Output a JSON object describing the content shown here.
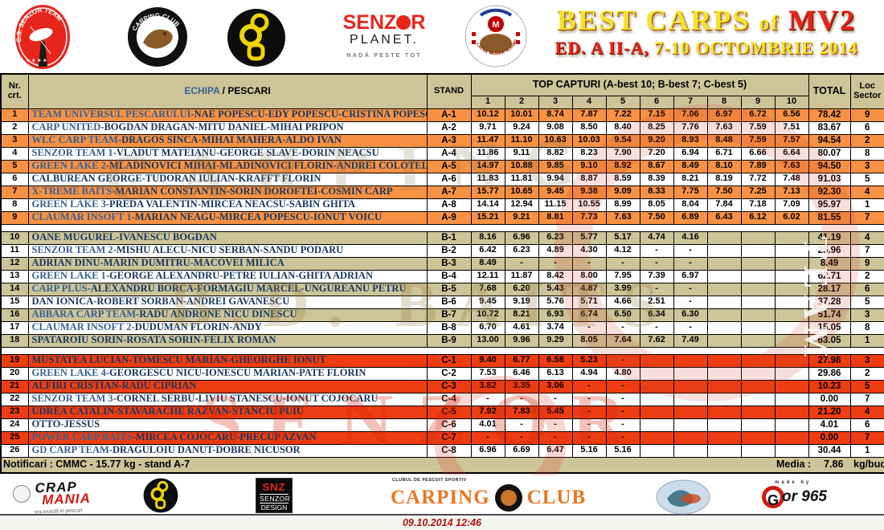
{
  "banner": {
    "title_main": "BEST CARPS",
    "title_of": "of",
    "title_mv2": "MV2",
    "subtitle_ed": "ED. A II-A,",
    "subtitle_date": "7-10 OCTOMBRIE 2014"
  },
  "logos": {
    "cs_senzor": "C.S. SENZOR TEAM",
    "carping_club": "CARPING CLUB",
    "senzor_planet_senz": "SENZ",
    "senzor_planet_r": "R",
    "senzor_planet_planet": "PLANET.",
    "senzor_planet_tag": "NADĂ PESTE TOT",
    "moara_vlasiei": "LACUL MOARA VLASIEI 2",
    "moara_m": "M"
  },
  "watermarks": {
    "carping": "CARPING",
    "baits": "B.D. BAITS",
    "senzor": "SENZOR",
    "team": "TEAM"
  },
  "colors": {
    "group_a_row": "#F79245",
    "group_b_row": "#CDC49A",
    "group_c_row": "#EE3D12",
    "header_beige": "#CDC49A",
    "team_blue": "#376092",
    "player_navy": "#17365D",
    "accent_red": "#E8251C"
  },
  "table": {
    "headers": {
      "nr": "Nr. crt.",
      "echipa": "ECHIPA",
      "pescari": " / PESCARI",
      "stand": "STAND",
      "top": "TOP CAPTURI (A-best 10; B-best 7; C-best 5)",
      "total": "TOTAL",
      "loc": "Loc Sector",
      "cols": [
        "1",
        "2",
        "3",
        "4",
        "5",
        "6",
        "7",
        "8",
        "9",
        "10"
      ]
    },
    "groups": [
      {
        "id": "A",
        "rows": [
          {
            "nr": 1,
            "team": "TEAM UNIVERSUL PESCARULUI",
            "players": "-NAE POPESCU-EDY POPESCU-CRISTINA POPESCU",
            "stand": "A-1",
            "v": [
              "10.12",
              "10.01",
              "8.74",
              "7.87",
              "7.22",
              "7.15",
              "7.06",
              "6.97",
              "6.72",
              "6.56"
            ],
            "total": "78.42",
            "loc": "9"
          },
          {
            "nr": 2,
            "team": "CARP UNITED",
            "players": "-BOGDAN DRAGAN-MITU DANIEL-MIHAI PRIPON",
            "stand": "A-2",
            "v": [
              "9.71",
              "9.24",
              "9.08",
              "8.50",
              "8.40",
              "8.25",
              "7.76",
              "7.63",
              "7.59",
              "7.51"
            ],
            "total": "83.67",
            "loc": "6"
          },
          {
            "nr": 3,
            "team": "WLC CARP TEAM",
            "players": "-DRAGOS SINCA-MIHAI MAHERA-ALDO IVAN",
            "stand": "A-3",
            "v": [
              "11.47",
              "11.10",
              "10.63",
              "10.03",
              "9.54",
              "9.20",
              "8.93",
              "8.48",
              "7.59",
              "7.57"
            ],
            "total": "94.54",
            "loc": "2"
          },
          {
            "nr": 4,
            "team": "SENZOR TEAM 1",
            "players": "-VLADUT MATEIANU-GEORGE SLAVE-DORIN NEACSU",
            "stand": "A-4",
            "v": [
              "11.86",
              "9.11",
              "8.82",
              "8.23",
              "7.90",
              "7.20",
              "6.94",
              "6.71",
              "6.66",
              "6.64"
            ],
            "total": "80.07",
            "loc": "8"
          },
          {
            "nr": 5,
            "team": "GREEN LAKE 2",
            "players": "-MLADINOVICI MIHAI-MLADINOVICI FLORIN-ANDREI COLOTELO",
            "stand": "A-5",
            "v": [
              "14.97",
              "10.88",
              "9.85",
              "9.10",
              "8.92",
              "8.67",
              "8.49",
              "8.10",
              "7.89",
              "7.63"
            ],
            "total": "94.50",
            "loc": "3"
          },
          {
            "nr": 6,
            "team": "",
            "players": "CALBUREAN GEORGE-TUDORAN IULIAN-KRAFFT FLORIN",
            "stand": "A-6",
            "v": [
              "11.83",
              "11.81",
              "9.94",
              "8.87",
              "8.59",
              "8.39",
              "8.21",
              "8.19",
              "7.72",
              "7.48"
            ],
            "total": "91.03",
            "loc": "5"
          },
          {
            "nr": 7,
            "team": "X-TREME BAITS",
            "players": "-MARIAN CONSTANTIN-SORIN DOROFTEI-COSMIN CARP",
            "stand": "A-7",
            "v": [
              "15.77",
              "10.65",
              "9.45",
              "9.38",
              "9.09",
              "8.33",
              "7.75",
              "7.50",
              "7.25",
              "7.13"
            ],
            "total": "92.30",
            "loc": "4"
          },
          {
            "nr": 8,
            "team": "GREEN LAKE 3",
            "players": "-PREDA VALENTIN-MIRCEA NEACSU-SABIN GHITA",
            "stand": "A-8",
            "v": [
              "14.14",
              "12.94",
              "11.15",
              "10.55",
              "8.99",
              "8.05",
              "8.04",
              "7.84",
              "7.18",
              "7.09"
            ],
            "total": "95.97",
            "loc": "1"
          },
          {
            "nr": 9,
            "team": "CLAUMAR INSOFT 1",
            "players": "-MARIAN NEAGU-MIRCEA POPESCU-IONUT VOICU",
            "stand": "A-9",
            "v": [
              "15.21",
              "9.21",
              "8.81",
              "7.73",
              "7.63",
              "7.50",
              "6.89",
              "6.43",
              "6.12",
              "6.02"
            ],
            "total": "81.55",
            "loc": "7"
          }
        ]
      },
      {
        "id": "B",
        "rows": [
          {
            "nr": 10,
            "team": "",
            "players": "OANE MUGUREL-IVANESCU BOGDAN",
            "stand": "B-1",
            "v": [
              "8.16",
              "6.96",
              "6.23",
              "5.77",
              "5.17",
              "4.74",
              "4.16",
              "",
              "",
              ""
            ],
            "total": "41.19",
            "loc": "4"
          },
          {
            "nr": 11,
            "team": "SENZOR TEAM 2",
            "players": "-MISHU ALECU-NICU SERBAN-SANDU PODARU",
            "stand": "B-2",
            "v": [
              "6.42",
              "6.23",
              "4.89",
              "4.30",
              "4.12",
              "-",
              "-",
              "",
              "",
              ""
            ],
            "total": "25.96",
            "loc": "7"
          },
          {
            "nr": 12,
            "team": "",
            "players": "ADRIAN DINU-MARIN DUMITRU-MACOVEI MILICA",
            "stand": "B-3",
            "v": [
              "8.49",
              "-",
              "-",
              "-",
              "-",
              "-",
              "-",
              "",
              "",
              ""
            ],
            "total": "8.49",
            "loc": "9"
          },
          {
            "nr": 13,
            "team": "GREEN LAKE 1",
            "players": "-GEORGE ALEXANDRU-PETRE IULIAN-GHITA ADRIAN",
            "stand": "B-4",
            "v": [
              "12.11",
              "11.87",
              "8.42",
              "8.00",
              "7.95",
              "7.39",
              "6.97",
              "",
              "",
              ""
            ],
            "total": "62.71",
            "loc": "2"
          },
          {
            "nr": 14,
            "team": "CARP PLUS",
            "players": "-ALEXANDRU BORCA-FORMAGIU MARCEL-UNGUREANU PETRU",
            "stand": "B-5",
            "v": [
              "7.68",
              "6.20",
              "5.43",
              "4.87",
              "3.99",
              "-",
              "-",
              "",
              "",
              ""
            ],
            "total": "28.17",
            "loc": "6"
          },
          {
            "nr": 15,
            "team": "",
            "players": "DAN IONICA-ROBERT SORBAN-ANDREI GAVANESCU",
            "stand": "B-6",
            "v": [
              "9.45",
              "9.19",
              "5.76",
              "5.71",
              "4.66",
              "2.51",
              "-",
              "",
              "",
              ""
            ],
            "total": "37.28",
            "loc": "5"
          },
          {
            "nr": 16,
            "team": "ABBARA CARP TEAM",
            "players": "-RADU ANDRONE NICU DINESCU",
            "stand": "B-7",
            "v": [
              "10.72",
              "8.21",
              "6.93",
              "6.74",
              "6.50",
              "6.34",
              "6.30",
              "",
              "",
              ""
            ],
            "total": "51.74",
            "loc": "3"
          },
          {
            "nr": 17,
            "team": "CLAUMAR INSOFT 2",
            "players": "-DUDUMAN FLORIN-ANDY",
            "stand": "B-8",
            "v": [
              "6.70",
              "4.61",
              "3.74",
              "-",
              "-",
              "-",
              "-",
              "",
              "",
              ""
            ],
            "total": "15.05",
            "loc": "8"
          },
          {
            "nr": 18,
            "team": "",
            "players": "SPATAROIU SORIN-ROSATA SORIN-FELIX ROMAN",
            "stand": "B-9",
            "v": [
              "13.00",
              "9.96",
              "9.29",
              "8.05",
              "7.64",
              "7.62",
              "7.49",
              "",
              "",
              ""
            ],
            "total": "63.05",
            "loc": "1"
          }
        ]
      },
      {
        "id": "C",
        "rows": [
          {
            "nr": 19,
            "team": "",
            "players": "MUSTATEA LUCIAN-TOMESCU MARIAN-GHEORGHE IONUT",
            "stand": "C-1",
            "v": [
              "9.40",
              "6.77",
              "6.58",
              "5.23",
              "-",
              "",
              "",
              "",
              "",
              ""
            ],
            "total": "27.98",
            "loc": "3"
          },
          {
            "nr": 20,
            "team": "GREEN LAKE 4",
            "players": "-GEORGESCU NICU-IONESCU MARIAN-PATE FLORIN",
            "stand": "C-2",
            "v": [
              "7.53",
              "6.46",
              "6.13",
              "4.94",
              "4.80",
              "",
              "",
              "",
              "",
              ""
            ],
            "total": "29.86",
            "loc": "2"
          },
          {
            "nr": 21,
            "team": "",
            "players": "ALFIRI CRISTIAN-RADU CIPRIAN",
            "stand": "C-3",
            "v": [
              "3.82",
              "3.35",
              "3.06",
              "-",
              "-",
              "",
              "",
              "",
              "",
              ""
            ],
            "total": "10.23",
            "loc": "5"
          },
          {
            "nr": 22,
            "team": "SENZOR TEAM 3",
            "players": "-CORNEL SERBU-LIVIU STANESCU-IONUT COJOCARU",
            "stand": "C-4",
            "v": [
              "-",
              "-",
              "-",
              "-",
              "-",
              "",
              "",
              "",
              "",
              ""
            ],
            "total": "0.00",
            "loc": "7"
          },
          {
            "nr": 23,
            "team": "",
            "players": "UDREA CATALIN-STAVARACHE RAZVAN-STANCIU PUIU",
            "stand": "C-5",
            "v": [
              "7.92",
              "7.83",
              "5.45",
              "-",
              "-",
              "",
              "",
              "",
              "",
              ""
            ],
            "total": "21.20",
            "loc": "4"
          },
          {
            "nr": 24,
            "team": "",
            "players": "OTTO-JESSUS",
            "stand": "C-6",
            "v": [
              "4.01",
              "-",
              "-",
              "-",
              "-",
              "",
              "",
              "",
              "",
              ""
            ],
            "total": "4.01",
            "loc": "6"
          },
          {
            "nr": 25,
            "team": "POWER CARP BAITS",
            "players": "-MIRCEA COJOCARU-PRECUP AZVAN",
            "stand": "C-7",
            "v": [
              "-",
              "-",
              "-",
              "-",
              "-",
              "",
              "",
              "",
              "",
              ""
            ],
            "total": "0.00",
            "loc": "7"
          },
          {
            "nr": 26,
            "team": "GD CARP TEAM",
            "players": "-DRAGULOIU DANUT-DOBRE NICUSOR",
            "stand": "C-8",
            "v": [
              "6.96",
              "6.69",
              "6.47",
              "5.16",
              "5.16",
              "",
              "",
              "",
              "",
              ""
            ],
            "total": "30.44",
            "loc": "1"
          }
        ]
      }
    ]
  },
  "footer": {
    "notificari": "Notificari : CMMC -  15.77 kg - stand A-7",
    "media_label": "Media :",
    "media_value": "7.86",
    "media_unit": "kg/buc",
    "datetime": "09.10.2014 12:46",
    "crap_line1": "CRAP",
    "crap_line2": "MANIA",
    "crap_tag": "ora exactă in pescuit",
    "snz_top": "SNZ",
    "snz_mid": "SENZOR",
    "snz_bot": "DESIGN",
    "cc_small": "CLUBUL DE PESCUIT SPORTIV",
    "cc_word1": "CARPING",
    "cc_word2": "CLUB",
    "made_by": "made by",
    "gor_g": "G",
    "gor_rest": "or 965"
  }
}
